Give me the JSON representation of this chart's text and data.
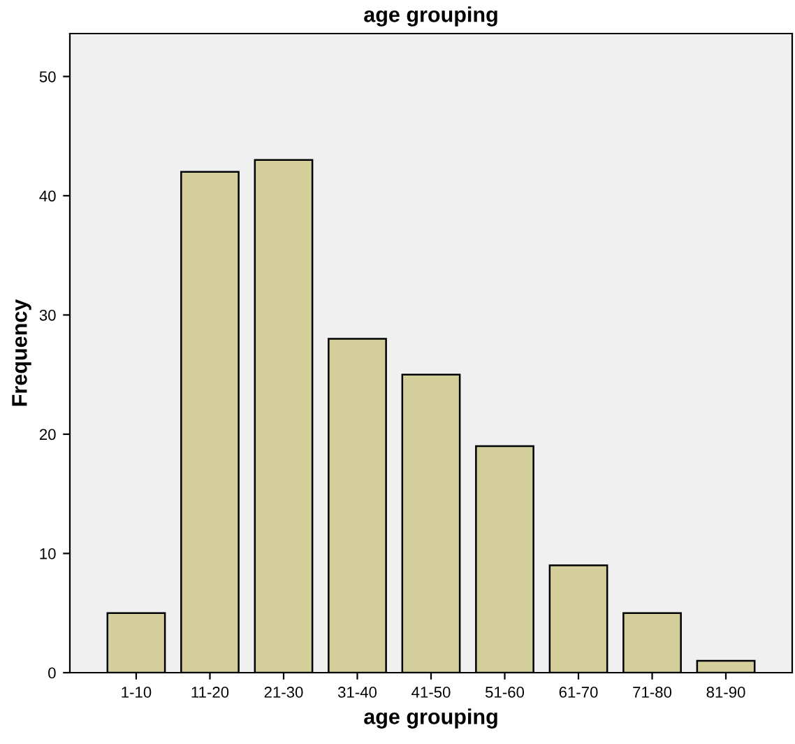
{
  "chart_data": {
    "type": "bar",
    "title": "age grouping",
    "xlabel": "age grouping",
    "ylabel": "Frequency",
    "categories": [
      "1-10",
      "11-20",
      "21-30",
      "31-40",
      "41-50",
      "51-60",
      "61-70",
      "71-80",
      "81-90"
    ],
    "values": [
      5,
      42,
      43,
      28,
      25,
      19,
      9,
      5,
      1
    ],
    "color": "#d3ce9a",
    "ylim": [
      0,
      53.6
    ],
    "yticks": [
      0,
      10,
      20,
      30,
      40,
      50
    ],
    "grid": false
  }
}
